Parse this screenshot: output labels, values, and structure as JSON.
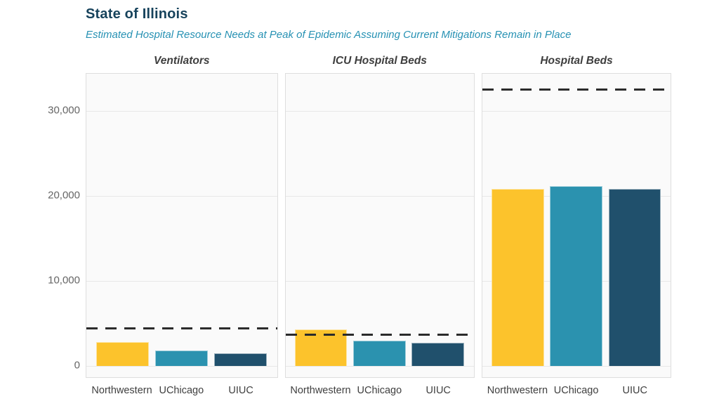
{
  "header": {
    "title": "State of Illinois",
    "subtitle": "Estimated Hospital Resource Needs at Peak of Epidemic Assuming Current Mitigations Remain in Place"
  },
  "colors": {
    "title": "#17435C",
    "subtitle": "#2691B3",
    "panel_title": "#3E3E3E",
    "panel_bg": "#FAFAFA",
    "panel_border": "#DEDEDE",
    "gridline": "#E8E8E8",
    "capacity_line": "#2B2B2B",
    "y_tick_label": "#666666",
    "x_tick_label": "#3F3F3F",
    "series": {
      "Northwestern": "#FCC32C",
      "UChicago": "#2B92AF",
      "UIUC": "#20506C"
    }
  },
  "chart_data": {
    "type": "bar",
    "title": "State of Illinois",
    "subtitle": "Estimated Hospital Resource Needs at Peak of Epidemic Assuming Current Mitigations Remain in Place",
    "layout": "three small-multiple panels sharing one y-axis; grid on; no legend; dashed horizontal capacity line per panel",
    "categories": [
      "Northwestern",
      "UChicago",
      "UIUC"
    ],
    "y_axis": {
      "ticks": [
        0,
        10000,
        20000,
        30000
      ],
      "tick_labels": [
        "0",
        "10,000",
        "20,000",
        "30,000"
      ],
      "domain": [
        -1500,
        34400
      ]
    },
    "panels": [
      {
        "title": "Ventilators",
        "values": [
          2800,
          1850,
          1450
        ],
        "capacity_line": 4400
      },
      {
        "title": "ICU Hospital Beds",
        "values": [
          4250,
          3000,
          2750
        ],
        "capacity_line": 3700
      },
      {
        "title": "Hospital Beds",
        "values": [
          20800,
          21200,
          20800
        ],
        "capacity_line": 32500
      }
    ]
  }
}
